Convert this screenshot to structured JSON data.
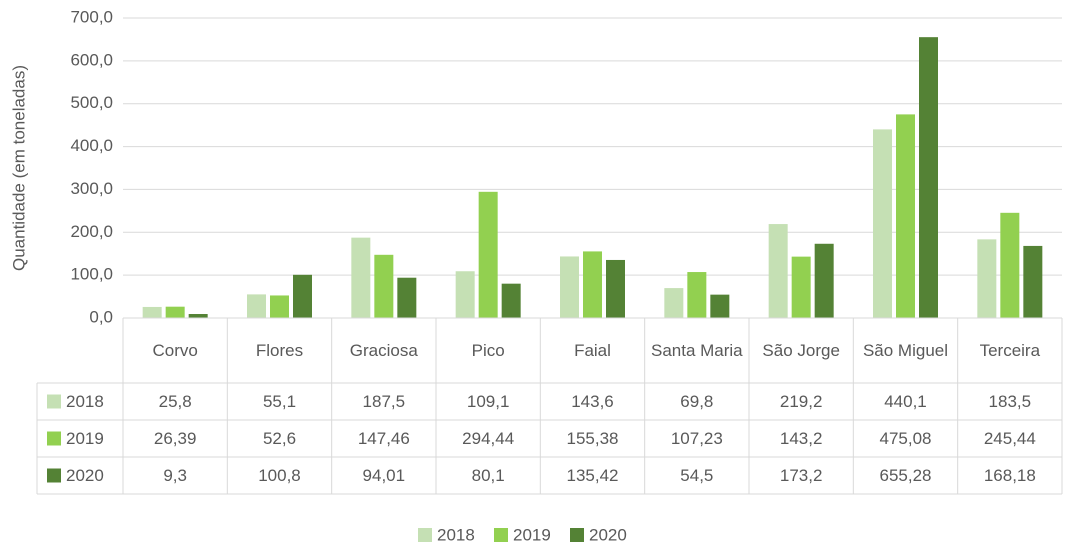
{
  "chart_data": {
    "type": "bar",
    "y_axis_label": "Quantidade (em toneladas)",
    "categories": [
      "Corvo",
      "Flores",
      "Graciosa",
      "Pico",
      "Faial",
      "Santa Maria",
      "São Jorge",
      "São Miguel",
      "Terceira"
    ],
    "series": [
      {
        "name": "2018",
        "color": "#c5e0b4",
        "values": [
          25.8,
          55.1,
          187.5,
          109.1,
          143.6,
          69.8,
          219.2,
          440.1,
          183.5
        ],
        "value_labels": [
          "25,8",
          "55,1",
          "187,5",
          "109,1",
          "143,6",
          "69,8",
          "219,2",
          "440,1",
          "183,5"
        ]
      },
      {
        "name": "2019",
        "color": "#92d050",
        "values": [
          26.39,
          52.6,
          147.46,
          294.44,
          155.38,
          107.23,
          143.2,
          475.08,
          245.44
        ],
        "value_labels": [
          "26,39",
          "52,6",
          "147,46",
          "294,44",
          "155,38",
          "107,23",
          "143,2",
          "475,08",
          "245,44"
        ]
      },
      {
        "name": "2020",
        "color": "#548235",
        "values": [
          9.3,
          100.8,
          94.01,
          80.1,
          135.42,
          54.5,
          173.2,
          655.28,
          168.18
        ],
        "value_labels": [
          "9,3",
          "100,8",
          "94,01",
          "80,1",
          "135,42",
          "54,5",
          "173,2",
          "655,28",
          "168,18"
        ]
      }
    ],
    "ylim": [
      0,
      700
    ],
    "yticks": [
      {
        "value": 0,
        "label": "0,0"
      },
      {
        "value": 100,
        "label": "100,0"
      },
      {
        "value": 200,
        "label": "200,0"
      },
      {
        "value": 300,
        "label": "300,0"
      },
      {
        "value": 400,
        "label": "400,0"
      },
      {
        "value": 500,
        "label": "500,0"
      },
      {
        "value": 600,
        "label": "600,0"
      },
      {
        "value": 700,
        "label": "700,0"
      }
    ],
    "grid": true,
    "legend": "bottom"
  }
}
